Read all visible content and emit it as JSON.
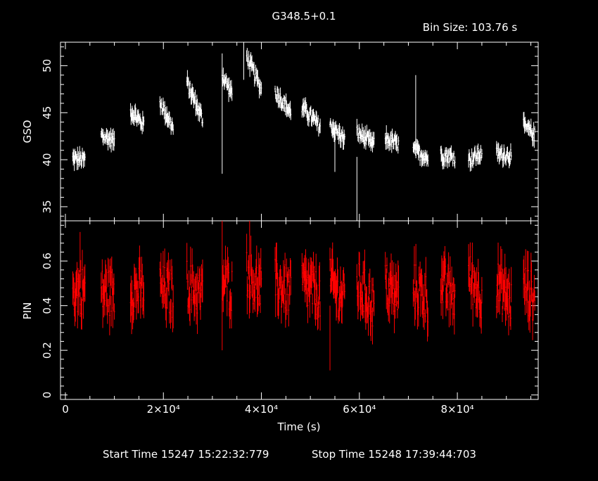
{
  "title": "G348.5+0.1",
  "bin_size_label": "Bin Size:",
  "bin_size_value": "103.76 s",
  "footer": {
    "start_label": "Start Time",
    "start_value": "15247 15:22:32:779",
    "stop_label": "Stop Time",
    "stop_value": "15248 17:39:44:703"
  },
  "colors": {
    "background": "#000000",
    "gso": "#ffffff",
    "pin": "#ff0000",
    "axes": "#ffffff"
  },
  "chart_data": [
    {
      "type": "scatter",
      "panel": "top",
      "ylabel": "GSO",
      "xlabel": "",
      "xlim": [
        -1000,
        96500
      ],
      "ylim": [
        33.5,
        52.5
      ],
      "yticks": [
        35,
        40,
        45,
        50
      ],
      "segments": [
        {
          "x": [
            1500,
            4000
          ],
          "y": [
            40.1,
            40.0
          ]
        },
        {
          "x": [
            7300,
            10000
          ],
          "y": [
            42.6,
            42.0
          ]
        },
        {
          "x": [
            13300,
            16000
          ],
          "y": [
            45.2,
            43.7
          ]
        },
        {
          "x": [
            19300,
            22000
          ],
          "y": [
            46.2,
            43.3
          ]
        },
        {
          "x": [
            24800,
            28000
          ],
          "y": [
            48.2,
            44.3
          ]
        },
        {
          "x": [
            32000,
            34000
          ],
          "y": [
            49.0,
            47.0
          ]
        },
        {
          "x": [
            37000,
            40000
          ],
          "y": [
            51.0,
            47.5
          ]
        },
        {
          "x": [
            42800,
            46000
          ],
          "y": [
            47.3,
            45.0
          ]
        },
        {
          "x": [
            48300,
            52000
          ],
          "y": [
            45.6,
            43.5
          ]
        },
        {
          "x": [
            54000,
            57000
          ],
          "y": [
            43.7,
            42.1
          ]
        },
        {
          "x": [
            59500,
            63000
          ],
          "y": [
            42.9,
            41.6
          ]
        },
        {
          "x": [
            65300,
            68000
          ],
          "y": [
            42.3,
            41.6
          ]
        },
        {
          "x": [
            71000,
            74000
          ],
          "y": [
            41.0,
            40.2
          ]
        },
        {
          "x": [
            76600,
            79500
          ],
          "y": [
            40.5,
            40.3
          ]
        },
        {
          "x": [
            82300,
            85000
          ],
          "y": [
            40.0,
            40.7
          ]
        },
        {
          "x": [
            88000,
            91000
          ],
          "y": [
            40.6,
            40.5
          ]
        },
        {
          "x": [
            93500,
            95800
          ],
          "y": [
            43.6,
            42.6
          ]
        }
      ],
      "spikes": [
        {
          "x": 32000,
          "low": 38.5,
          "high": 51.3
        },
        {
          "x": 36400,
          "low": 48.5,
          "high": 52.5
        },
        {
          "x": 59500,
          "low": 33.5,
          "high": 40.3
        },
        {
          "x": 71500,
          "low": 41.0,
          "high": 49.0
        },
        {
          "x": 55000,
          "low": 38.7,
          "high": 44.0
        }
      ]
    },
    {
      "type": "scatter",
      "panel": "bottom",
      "ylabel": "PIN",
      "xlabel": "Time (s)",
      "xlim": [
        -1000,
        96500
      ],
      "ylim": [
        -0.02,
        0.78
      ],
      "yticks": [
        0,
        0.2,
        0.4,
        0.6
      ],
      "ytick_labels": [
        "0",
        "0.2",
        "0.4",
        "0.6"
      ],
      "xticks": [
        0,
        20000,
        40000,
        60000,
        80000
      ],
      "xtick_labels": [
        "0",
        "2×10⁴",
        "4×10⁴",
        "6×10⁴",
        "8×10⁴"
      ],
      "segments": [
        {
          "x": [
            1500,
            4000
          ],
          "y": [
            0.47,
            0.47
          ]
        },
        {
          "x": [
            7300,
            10000
          ],
          "y": [
            0.46,
            0.46
          ]
        },
        {
          "x": [
            13300,
            16000
          ],
          "y": [
            0.47,
            0.47
          ]
        },
        {
          "x": [
            19300,
            22000
          ],
          "y": [
            0.48,
            0.45
          ]
        },
        {
          "x": [
            24800,
            28000
          ],
          "y": [
            0.5,
            0.44
          ]
        },
        {
          "x": [
            32000,
            34000
          ],
          "y": [
            0.5,
            0.48
          ]
        },
        {
          "x": [
            37000,
            40000
          ],
          "y": [
            0.55,
            0.47
          ]
        },
        {
          "x": [
            42800,
            46000
          ],
          "y": [
            0.5,
            0.46
          ]
        },
        {
          "x": [
            48300,
            52000
          ],
          "y": [
            0.5,
            0.44
          ]
        },
        {
          "x": [
            54000,
            57000
          ],
          "y": [
            0.5,
            0.43
          ]
        },
        {
          "x": [
            59500,
            63000
          ],
          "y": [
            0.5,
            0.4
          ]
        },
        {
          "x": [
            65300,
            68000
          ],
          "y": [
            0.49,
            0.43
          ]
        },
        {
          "x": [
            71000,
            74000
          ],
          "y": [
            0.49,
            0.43
          ]
        },
        {
          "x": [
            76600,
            79500
          ],
          "y": [
            0.49,
            0.44
          ]
        },
        {
          "x": [
            82300,
            85000
          ],
          "y": [
            0.53,
            0.45
          ]
        },
        {
          "x": [
            88000,
            91000
          ],
          "y": [
            0.5,
            0.42
          ]
        },
        {
          "x": [
            93500,
            95800
          ],
          "y": [
            0.49,
            0.43
          ]
        }
      ],
      "spikes": [
        {
          "x": 32000,
          "low": 0.2,
          "high": 0.78
        },
        {
          "x": 37600,
          "low": 0.4,
          "high": 0.78
        },
        {
          "x": 54000,
          "low": 0.11,
          "high": 0.4
        },
        {
          "x": 3000,
          "low": 0.55,
          "high": 0.73
        }
      ]
    }
  ]
}
